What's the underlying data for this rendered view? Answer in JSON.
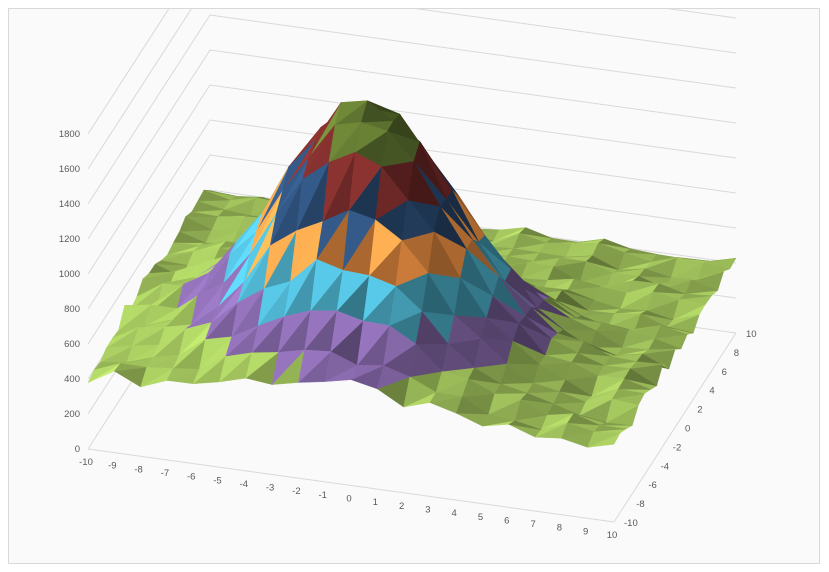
{
  "chart_data": {
    "type": "surface",
    "title": "",
    "x": [
      -10,
      -9,
      -8,
      -7,
      -6,
      -5,
      -4,
      -3,
      -2,
      -1,
      0,
      1,
      2,
      3,
      4,
      5,
      6,
      7,
      8,
      9,
      10
    ],
    "y": [
      -10,
      -9,
      -8,
      -7,
      -6,
      -5,
      -4,
      -3,
      -2,
      -1,
      0,
      1,
      2,
      3,
      4,
      5,
      6,
      7,
      8,
      9,
      10
    ],
    "x_tick_labels": [
      "-10",
      "-9",
      "-8",
      "-7",
      "-6",
      "-5",
      "-4",
      "-3",
      "-2",
      "-1",
      "0",
      "1",
      "2",
      "3",
      "4",
      "5",
      "6",
      "7",
      "8",
      "9",
      "10"
    ],
    "y_tick_labels": [
      "-10",
      "-8",
      "-6",
      "-4",
      "-2",
      "0",
      "2",
      "4",
      "6",
      "8",
      "10"
    ],
    "z_tick_labels": [
      "0",
      "200",
      "400",
      "600",
      "800",
      "1000",
      "1200",
      "1400",
      "1600",
      "1800"
    ],
    "zlim": [
      0,
      1800
    ],
    "z_shape": "peak",
    "z_peak": 1800,
    "z_peak_x": -1,
    "z_peak_y": -3,
    "z_base": 420,
    "grid": true,
    "legend": "none",
    "bands": [
      {
        "from": 0,
        "to": 200,
        "color": "#c0504d"
      },
      {
        "from": 200,
        "to": 600,
        "color": "#9bbb59"
      },
      {
        "from": 600,
        "to": 800,
        "color": "#8064a2"
      },
      {
        "from": 800,
        "to": 1000,
        "color": "#4bacc6"
      },
      {
        "from": 1000,
        "to": 1200,
        "color": "#f79646"
      },
      {
        "from": 1200,
        "to": 1400,
        "color": "#2c4d75"
      },
      {
        "from": 1400,
        "to": 1600,
        "color": "#772c2a"
      },
      {
        "from": 1600,
        "to": 1800,
        "color": "#5f7530"
      }
    ]
  }
}
